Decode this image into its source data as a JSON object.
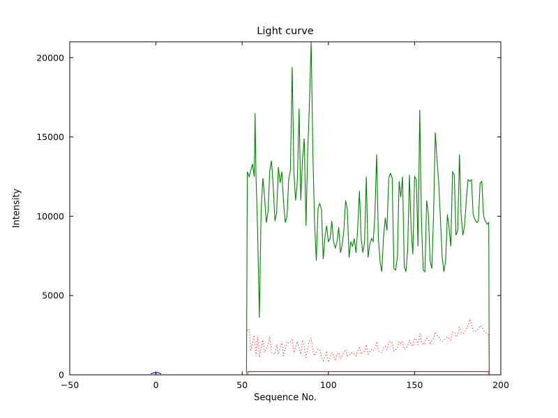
{
  "chart_data": {
    "type": "line",
    "title": "Light curve",
    "xlabel": "Sequence No.",
    "ylabel": "Intensity",
    "xlim": [
      -50,
      200
    ],
    "ylim": [
      0,
      21000
    ],
    "grid": false,
    "legend": null,
    "xtick_values": [
      -50,
      0,
      50,
      100,
      150,
      200
    ],
    "xtick_labels": [
      "−50",
      "0",
      "50",
      "100",
      "150",
      "200"
    ],
    "ytick_values": [
      0,
      5000,
      10000,
      15000,
      20000
    ],
    "ytick_labels": [
      "0",
      "5000",
      "10000",
      "15000",
      "20000"
    ],
    "series": [
      {
        "name": "intensity-green-solid",
        "color": "#008000",
        "style": "solid",
        "points": [
          [
            52.5,
            100
          ],
          [
            53,
            12800
          ],
          [
            54,
            12500
          ],
          [
            55,
            12900
          ],
          [
            56,
            13300
          ],
          [
            57,
            12500
          ],
          [
            57.5,
            16500
          ],
          [
            58,
            12600
          ],
          [
            59,
            9000
          ],
          [
            60,
            3600
          ],
          [
            61,
            10400
          ],
          [
            62,
            12400
          ],
          [
            63,
            11200
          ],
          [
            64,
            9600
          ],
          [
            65,
            10300
          ],
          [
            66,
            12900
          ],
          [
            67,
            13500
          ],
          [
            68,
            11900
          ],
          [
            69,
            9700
          ],
          [
            70,
            10200
          ],
          [
            71,
            13100
          ],
          [
            72,
            12100
          ],
          [
            73,
            12800
          ],
          [
            74,
            10900
          ],
          [
            75,
            9600
          ],
          [
            76,
            10000
          ],
          [
            77,
            12300
          ],
          [
            78,
            12900
          ],
          [
            79,
            19400
          ],
          [
            80,
            12700
          ],
          [
            81,
            11000
          ],
          [
            82,
            12200
          ],
          [
            83,
            16800
          ],
          [
            84,
            11000
          ],
          [
            85,
            13600
          ],
          [
            86,
            14900
          ],
          [
            87,
            9400
          ],
          [
            88,
            14000
          ],
          [
            89,
            17000
          ],
          [
            90,
            21000
          ],
          [
            91,
            13900
          ],
          [
            92,
            9600
          ],
          [
            93,
            7200
          ],
          [
            94,
            10500
          ],
          [
            95,
            10800
          ],
          [
            96,
            10400
          ],
          [
            97,
            7300
          ],
          [
            98,
            8700
          ],
          [
            99,
            9400
          ],
          [
            100,
            8400
          ],
          [
            101,
            8600
          ],
          [
            102,
            9700
          ],
          [
            103,
            8400
          ],
          [
            104,
            8000
          ],
          [
            105,
            8400
          ],
          [
            106,
            9300
          ],
          [
            107,
            7700
          ],
          [
            108,
            8200
          ],
          [
            109,
            9100
          ],
          [
            110,
            11000
          ],
          [
            111,
            10400
          ],
          [
            112,
            7400
          ],
          [
            113,
            8400
          ],
          [
            114,
            8100
          ],
          [
            115,
            8600
          ],
          [
            116,
            7700
          ],
          [
            117,
            9200
          ],
          [
            118,
            11600
          ],
          [
            119,
            8600
          ],
          [
            120,
            7700
          ],
          [
            121,
            8400
          ],
          [
            122,
            12500
          ],
          [
            123,
            7400
          ],
          [
            124,
            8200
          ],
          [
            125,
            8600
          ],
          [
            126,
            8400
          ],
          [
            127,
            10100
          ],
          [
            128,
            13900
          ],
          [
            129,
            8600
          ],
          [
            130,
            7100
          ],
          [
            131,
            6500
          ],
          [
            132,
            8700
          ],
          [
            133,
            9900
          ],
          [
            134,
            9100
          ],
          [
            135,
            12400
          ],
          [
            136,
            12700
          ],
          [
            137,
            12400
          ],
          [
            138,
            6700
          ],
          [
            139,
            6600
          ],
          [
            140,
            7400
          ],
          [
            141,
            12200
          ],
          [
            142,
            11200
          ],
          [
            143,
            12500
          ],
          [
            144,
            6800
          ],
          [
            145,
            6500
          ],
          [
            146,
            7900
          ],
          [
            147,
            12600
          ],
          [
            148,
            9100
          ],
          [
            149,
            7600
          ],
          [
            150,
            12500
          ],
          [
            151,
            12300
          ],
          [
            152,
            8100
          ],
          [
            153,
            16700
          ],
          [
            154,
            9600
          ],
          [
            155,
            6600
          ],
          [
            156,
            6500
          ],
          [
            157,
            11000
          ],
          [
            158,
            10100
          ],
          [
            159,
            7200
          ],
          [
            160,
            6700
          ],
          [
            161,
            10100
          ],
          [
            162,
            15300
          ],
          [
            163,
            13600
          ],
          [
            164,
            12100
          ],
          [
            165,
            9800
          ],
          [
            166,
            7400
          ],
          [
            167,
            6500
          ],
          [
            168,
            7200
          ],
          [
            169,
            10100
          ],
          [
            170,
            9300
          ],
          [
            171,
            8100
          ],
          [
            172,
            12800
          ],
          [
            173,
            12600
          ],
          [
            174,
            8800
          ],
          [
            175,
            9100
          ],
          [
            176,
            13900
          ],
          [
            177,
            10100
          ],
          [
            178,
            8800
          ],
          [
            179,
            9400
          ],
          [
            180,
            11100
          ],
          [
            181,
            12300
          ],
          [
            182,
            12200
          ],
          [
            183,
            12300
          ],
          [
            184,
            10100
          ],
          [
            185,
            9800
          ],
          [
            186,
            9600
          ],
          [
            187,
            9700
          ],
          [
            188,
            12100
          ],
          [
            189,
            12200
          ],
          [
            190,
            10000
          ],
          [
            191,
            9700
          ],
          [
            192,
            9500
          ],
          [
            193,
            9600
          ],
          [
            193.3,
            0
          ]
        ]
      },
      {
        "name": "background-red-dotted",
        "color": "#ff0000",
        "style": "dotted",
        "points": [
          [
            53,
            2800
          ],
          [
            54,
            2900
          ],
          [
            55,
            1500
          ],
          [
            57,
            2500
          ],
          [
            58,
            1200
          ],
          [
            59,
            2400
          ],
          [
            60,
            1100
          ],
          [
            62,
            2200
          ],
          [
            63,
            1400
          ],
          [
            65,
            1900
          ],
          [
            66,
            2400
          ],
          [
            67,
            1400
          ],
          [
            69,
            1300
          ],
          [
            70,
            1900
          ],
          [
            71,
            1300
          ],
          [
            73,
            2100
          ],
          [
            74,
            1200
          ],
          [
            76,
            2100
          ],
          [
            77,
            2000
          ],
          [
            79,
            2200
          ],
          [
            80,
            1400
          ],
          [
            82,
            2100
          ],
          [
            83,
            1700
          ],
          [
            84,
            1300
          ],
          [
            85,
            2100
          ],
          [
            86,
            1900
          ],
          [
            87,
            1100
          ],
          [
            89,
            2200
          ],
          [
            90,
            2300
          ],
          [
            91,
            1500
          ],
          [
            92,
            1200
          ],
          [
            94,
            1600
          ],
          [
            95,
            1600
          ],
          [
            96,
            1100
          ],
          [
            97,
            900
          ],
          [
            99,
            1400
          ],
          [
            100,
            800
          ],
          [
            102,
            1400
          ],
          [
            103,
            1200
          ],
          [
            104,
            900
          ],
          [
            105,
            1300
          ],
          [
            106,
            1400
          ],
          [
            107,
            1000
          ],
          [
            109,
            1400
          ],
          [
            110,
            1600
          ],
          [
            111,
            1200
          ],
          [
            113,
            1300
          ],
          [
            114,
            1400
          ],
          [
            116,
            1200
          ],
          [
            117,
            1500
          ],
          [
            118,
            1700
          ],
          [
            119,
            1300
          ],
          [
            121,
            1500
          ],
          [
            122,
            1800
          ],
          [
            123,
            1300
          ],
          [
            125,
            1600
          ],
          [
            126,
            1500
          ],
          [
            127,
            1700
          ],
          [
            128,
            2000
          ],
          [
            129,
            1500
          ],
          [
            131,
            1400
          ],
          [
            132,
            1700
          ],
          [
            133,
            1800
          ],
          [
            134,
            1600
          ],
          [
            135,
            2000
          ],
          [
            136,
            2100
          ],
          [
            137,
            2000
          ],
          [
            138,
            1500
          ],
          [
            140,
            1700
          ],
          [
            141,
            2100
          ],
          [
            142,
            2000
          ],
          [
            143,
            2100
          ],
          [
            144,
            1600
          ],
          [
            146,
            1800
          ],
          [
            147,
            2200
          ],
          [
            148,
            1900
          ],
          [
            149,
            1800
          ],
          [
            150,
            2300
          ],
          [
            151,
            2200
          ],
          [
            152,
            1900
          ],
          [
            153,
            2600
          ],
          [
            154,
            2100
          ],
          [
            155,
            1900
          ],
          [
            157,
            2300
          ],
          [
            158,
            2200
          ],
          [
            159,
            2000
          ],
          [
            161,
            2300
          ],
          [
            162,
            2700
          ],
          [
            163,
            2500
          ],
          [
            164,
            2400
          ],
          [
            165,
            2200
          ],
          [
            166,
            2100
          ],
          [
            168,
            2300
          ],
          [
            169,
            2400
          ],
          [
            170,
            2300
          ],
          [
            171,
            2200
          ],
          [
            172,
            2700
          ],
          [
            173,
            2700
          ],
          [
            174,
            2400
          ],
          [
            175,
            2500
          ],
          [
            176,
            3000
          ],
          [
            177,
            2700
          ],
          [
            178,
            2600
          ],
          [
            179,
            2700
          ],
          [
            180,
            2900
          ],
          [
            181,
            3100
          ],
          [
            182,
            3500
          ],
          [
            183,
            3200
          ],
          [
            184,
            2800
          ],
          [
            185,
            2700
          ],
          [
            186,
            2800
          ],
          [
            187,
            2900
          ],
          [
            188,
            3100
          ],
          [
            189,
            3000
          ],
          [
            190,
            2800
          ],
          [
            191,
            2700
          ],
          [
            192,
            2600
          ],
          [
            193,
            2500
          ],
          [
            193.3,
            0
          ]
        ]
      },
      {
        "name": "baseline-red-solid",
        "color": "#ff0000",
        "style": "solid",
        "points": [
          [
            53,
            0
          ],
          [
            53.3,
            200
          ],
          [
            193,
            200
          ],
          [
            193.3,
            0
          ]
        ]
      },
      {
        "name": "marker-blue",
        "color": "#0000ff",
        "style": "solid",
        "points": [
          [
            -3,
            60
          ],
          [
            -1,
            140
          ],
          [
            0,
            100
          ],
          [
            1,
            150
          ],
          [
            3,
            50
          ]
        ]
      }
    ]
  }
}
